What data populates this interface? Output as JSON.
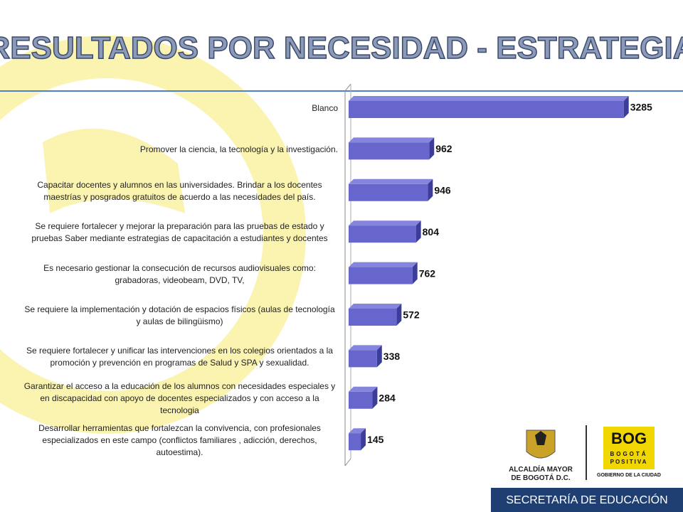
{
  "chart_data": {
    "type": "bar",
    "orientation": "horizontal",
    "title": "RESULTADOS POR NECESIDAD - ESTRATEGIA",
    "categories": [
      "Blanco",
      "Promover la ciencia, la tecnología y la investigación.",
      "Capacitar docentes y alumnos en las universidades. Brindar a los docentes maestrías y posgrados gratuitos de acuerdo a las necesidades del país.",
      "Se requiere fortalecer y mejorar la preparación para las pruebas de estado y pruebas Saber mediante estrategias de capacitación a estudiantes y docentes",
      "Es necesario gestionar la consecución de recursos audiovisuales como: grabadoras, videobeam, DVD, TV,",
      "Se requiere la implementación y dotación de espacios físicos (aulas de tecnología y aulas de bilingüismo)",
      "Se requiere fortalecer y unificar las intervenciones en los colegios orientados a la promoción y prevención en programas de Salud y SPA y sexualidad.",
      "Garantizar el acceso a la educación de los alumnos con necesidades especiales y en discapacidad con apoyo de docentes especializados y con acceso a la tecnologia",
      "Desarrollar herramientas que fortalezcan la convivencia, con profesionales especializados en este campo (conflictos familiares , adicción, derechos, autoestima)."
    ],
    "values": [
      3285,
      962,
      946,
      804,
      762,
      572,
      338,
      284,
      145
    ],
    "color": "#6666cc",
    "xlim": [
      0,
      3500
    ]
  },
  "logos": {
    "alcaldia_line1": "ALCALDÍA MAYOR",
    "alcaldia_line2": "DE BOGOTÁ D.C.",
    "bog": "BOG",
    "bog_sub1": "BOGOTÁ",
    "bog_sub2": "POSITIVA",
    "gobierno": "GOBIERNO DE LA CIUDAD"
  },
  "footer": "SECRETARÍA DE EDUCACIÓN"
}
